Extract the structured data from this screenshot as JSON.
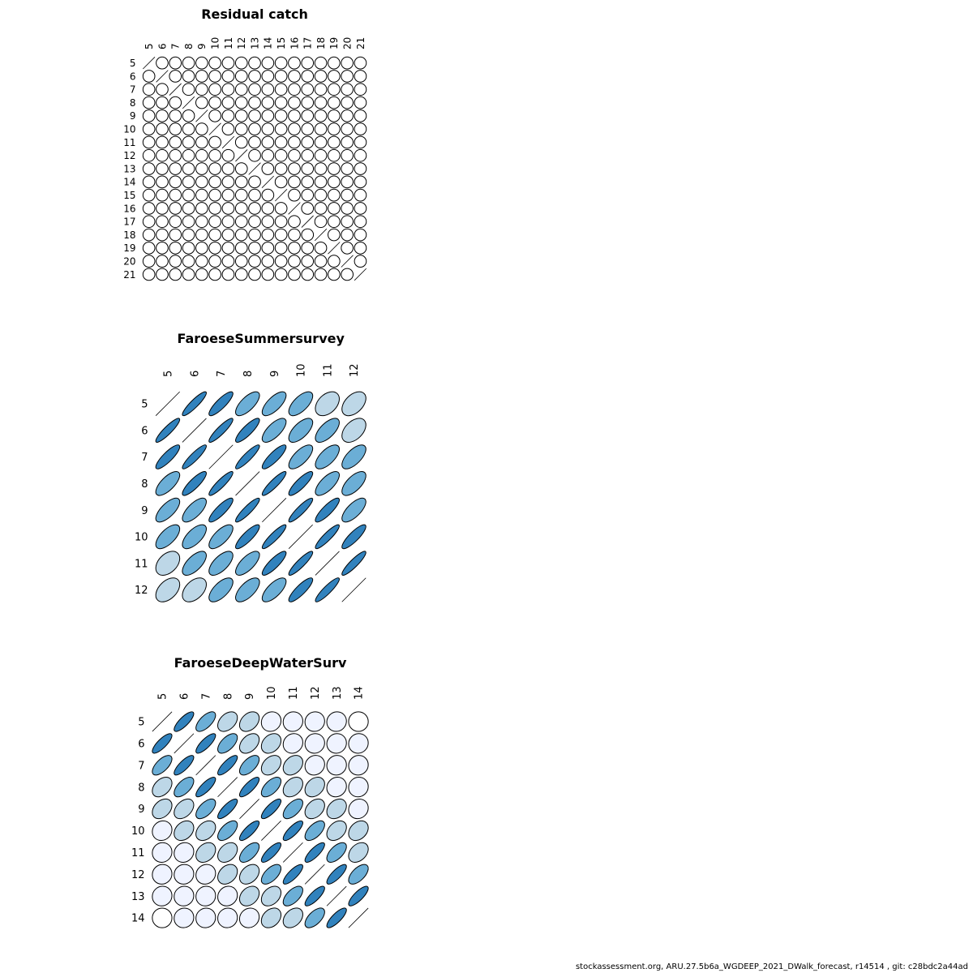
{
  "footer": "stockassessment.org, ARU.27.5b6a_WGDEEP_2021_DWalk_forecast, r14514 , git: c28bdc2a44ad",
  "palette": [
    "#ffffff",
    "#eff3ff",
    "#bdd7e7",
    "#6baed6",
    "#3182bd"
  ],
  "chart_data": [
    {
      "type": "heatmap",
      "title": "Residual catch",
      "labels": [
        "5",
        "6",
        "7",
        "8",
        "9",
        "10",
        "11",
        "12",
        "13",
        "14",
        "15",
        "16",
        "17",
        "18",
        "19",
        "20",
        "21"
      ],
      "correlation": 0.0,
      "note": "all off-diagonal correlations approximately 0"
    },
    {
      "type": "heatmap",
      "title": "FaroeseSummersurvey",
      "labels": [
        "5",
        "6",
        "7",
        "8",
        "9",
        "10",
        "11",
        "12"
      ],
      "matrix": [
        [
          1.0,
          0.9,
          0.85,
          0.7,
          0.7,
          0.65,
          0.4,
          0.45
        ],
        [
          0.9,
          1.0,
          0.9,
          0.85,
          0.7,
          0.65,
          0.65,
          0.45
        ],
        [
          0.85,
          0.9,
          1.0,
          0.9,
          0.85,
          0.7,
          0.65,
          0.65
        ],
        [
          0.7,
          0.85,
          0.9,
          1.0,
          0.9,
          0.85,
          0.7,
          0.65
        ],
        [
          0.7,
          0.7,
          0.85,
          0.9,
          1.0,
          0.9,
          0.85,
          0.7
        ],
        [
          0.65,
          0.65,
          0.7,
          0.85,
          0.9,
          1.0,
          0.9,
          0.85
        ],
        [
          0.4,
          0.65,
          0.65,
          0.7,
          0.85,
          0.9,
          1.0,
          0.9
        ],
        [
          0.45,
          0.45,
          0.65,
          0.65,
          0.7,
          0.85,
          0.9,
          1.0
        ]
      ]
    },
    {
      "type": "heatmap",
      "title": "FaroeseDeepWaterSurv",
      "labels": [
        "5",
        "6",
        "7",
        "8",
        "9",
        "10",
        "11",
        "12",
        "13",
        "14"
      ],
      "matrix": [
        [
          1.0,
          0.8,
          0.65,
          0.4,
          0.35,
          0.1,
          0.05,
          0.05,
          0.05,
          0.0
        ],
        [
          0.8,
          1.0,
          0.8,
          0.6,
          0.4,
          0.3,
          0.1,
          0.05,
          0.05,
          0.05
        ],
        [
          0.65,
          0.8,
          1.0,
          0.8,
          0.6,
          0.35,
          0.3,
          0.1,
          0.05,
          0.05
        ],
        [
          0.4,
          0.6,
          0.8,
          1.0,
          0.8,
          0.6,
          0.35,
          0.3,
          0.1,
          0.05
        ],
        [
          0.35,
          0.4,
          0.6,
          0.8,
          1.0,
          0.8,
          0.6,
          0.35,
          0.3,
          0.1
        ],
        [
          0.1,
          0.3,
          0.35,
          0.6,
          0.8,
          1.0,
          0.8,
          0.6,
          0.35,
          0.3
        ],
        [
          0.05,
          0.1,
          0.3,
          0.35,
          0.6,
          0.8,
          1.0,
          0.8,
          0.6,
          0.35
        ],
        [
          0.05,
          0.05,
          0.1,
          0.3,
          0.35,
          0.6,
          0.8,
          1.0,
          0.8,
          0.6
        ],
        [
          0.05,
          0.05,
          0.05,
          0.1,
          0.3,
          0.35,
          0.6,
          0.8,
          1.0,
          0.8
        ],
        [
          0.0,
          0.05,
          0.05,
          0.05,
          0.1,
          0.3,
          0.35,
          0.6,
          0.8,
          1.0
        ]
      ]
    }
  ]
}
